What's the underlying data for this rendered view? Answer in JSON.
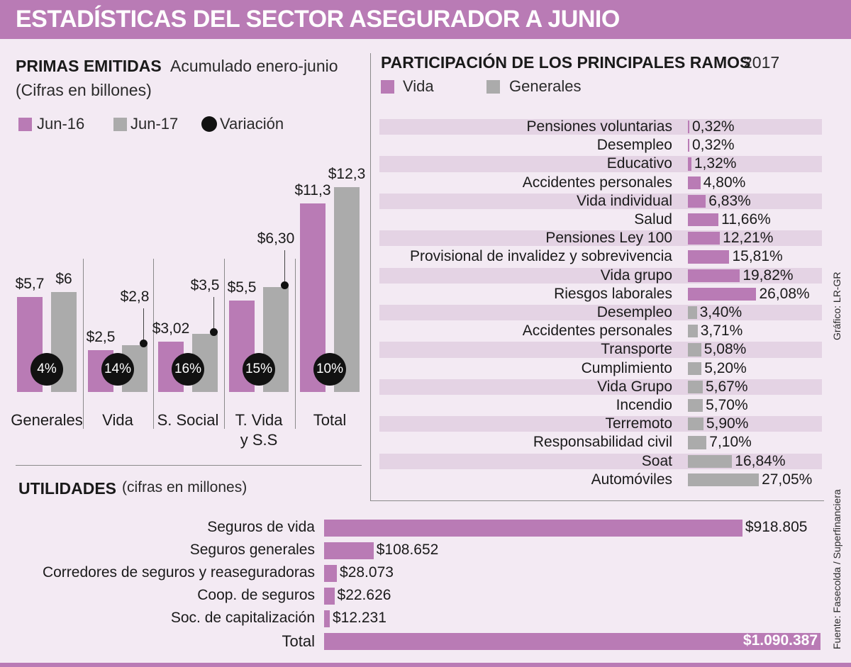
{
  "title": "ESTADÍSTICAS DEL SECTOR ASEGURADOR A JUNIO",
  "colors": {
    "vida": "#b97bb5",
    "generales": "#ababab",
    "variation": "#111111",
    "band": "#e4d3e4",
    "background": "#f3eaf3"
  },
  "chart_data": [
    {
      "type": "bar",
      "title": "PRIMAS EMITIDAS",
      "subtitle": "Acumulado enero-junio",
      "unit_note": "(Cifras en billones)",
      "legend": [
        "Jun-16",
        "Jun-17",
        "Variación"
      ],
      "categories": [
        "Generales",
        "Vida",
        "S. Social",
        "T. Vida\ny S.S",
        "Total"
      ],
      "series": [
        {
          "name": "Jun-16",
          "values": [
            5.7,
            2.5,
            3.02,
            5.5,
            11.3
          ],
          "labels": [
            "$5,7",
            "$2,5",
            "$3,02",
            "$5,5",
            "$11,3"
          ]
        },
        {
          "name": "Jun-17",
          "values": [
            6,
            2.8,
            3.5,
            6.3,
            12.3
          ],
          "labels": [
            "$6",
            "$2,8",
            "$3,5",
            "$6,30",
            "$12,3"
          ]
        }
      ],
      "variation": [
        "4%",
        "14%",
        "16%",
        "15%",
        "10%"
      ],
      "ylim": [
        0,
        13
      ]
    },
    {
      "type": "bar",
      "title": "PARTICIPACIÓN DE LOS PRINCIPALES RAMOS",
      "year": "2017",
      "legend": [
        "Vida",
        "Generales"
      ],
      "items": [
        {
          "name": "Pensiones voluntarias",
          "value": 0.32,
          "label": "0,32%",
          "group": "vida"
        },
        {
          "name": "Desempleo",
          "value": 0.32,
          "label": "0,32%",
          "group": "vida"
        },
        {
          "name": "Educativo",
          "value": 1.32,
          "label": "1,32%",
          "group": "vida"
        },
        {
          "name": "Accidentes personales",
          "value": 4.8,
          "label": "4,80%",
          "group": "vida"
        },
        {
          "name": "Vida individual",
          "value": 6.83,
          "label": "6,83%",
          "group": "vida"
        },
        {
          "name": "Salud",
          "value": 11.66,
          "label": "11,66%",
          "group": "vida"
        },
        {
          "name": "Pensiones Ley 100",
          "value": 12.21,
          "label": "12,21%",
          "group": "vida"
        },
        {
          "name": "Provisional de invalidez y sobrevivencia",
          "value": 15.81,
          "label": "15,81%",
          "group": "vida"
        },
        {
          "name": "Vida grupo",
          "value": 19.82,
          "label": "19,82%",
          "group": "vida"
        },
        {
          "name": "Riesgos laborales",
          "value": 26.08,
          "label": "26,08%",
          "group": "vida"
        },
        {
          "name": "Desempleo",
          "value": 3.4,
          "label": "3,40%",
          "group": "generales"
        },
        {
          "name": "Accidentes personales",
          "value": 3.71,
          "label": "3,71%",
          "group": "generales"
        },
        {
          "name": "Transporte",
          "value": 5.08,
          "label": "5,08%",
          "group": "generales"
        },
        {
          "name": "Cumplimiento",
          "value": 5.2,
          "label": "5,20%",
          "group": "generales"
        },
        {
          "name": "Vida Grupo",
          "value": 5.67,
          "label": "5,67%",
          "group": "generales"
        },
        {
          "name": "Incendio",
          "value": 5.7,
          "label": "5,70%",
          "group": "generales"
        },
        {
          "name": "Terremoto",
          "value": 5.9,
          "label": "5,90%",
          "group": "generales"
        },
        {
          "name": "Responsabilidad civil",
          "value": 7.1,
          "label": "7,10%",
          "group": "generales"
        },
        {
          "name": "Soat",
          "value": 16.84,
          "label": "16,84%",
          "group": "generales"
        },
        {
          "name": "Automóviles",
          "value": 27.05,
          "label": "27,05%",
          "group": "generales"
        }
      ]
    },
    {
      "type": "bar",
      "title": "UTILIDADES",
      "unit_note": "(cifras en millones)",
      "items": [
        {
          "name": "Seguros de vida",
          "value": 918805,
          "label": "$918.805"
        },
        {
          "name": "Seguros generales",
          "value": 108652,
          "label": "$108.652"
        },
        {
          "name": "Corredores de seguros y reaseguradoras",
          "value": 28073,
          "label": "$28.073"
        },
        {
          "name": "Coop. de seguros",
          "value": 22626,
          "label": "$22.626"
        },
        {
          "name": "Soc. de capitalización",
          "value": 12231,
          "label": "$12.231"
        },
        {
          "name": "Total",
          "value": 1090387,
          "label": "$1.090.387"
        }
      ]
    }
  ],
  "credits": {
    "grafico": "Gráfico: LR-GR",
    "fuente": "Fuente: Fasecolda / Superfinanciera"
  }
}
